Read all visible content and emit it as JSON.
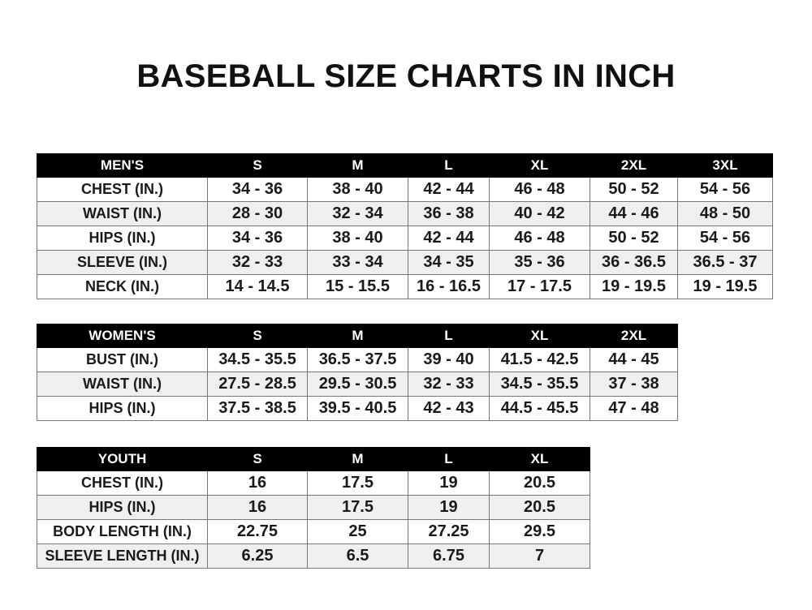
{
  "title": "BASEBALL SIZE CHARTS IN INCH",
  "tables": [
    {
      "id": "men",
      "header": [
        "MEN'S",
        "S",
        "M",
        "L",
        "XL",
        "2XL",
        "3XL"
      ],
      "rows": [
        [
          "CHEST (IN.)",
          "34 - 36",
          "38 - 40",
          "42 - 44",
          "46 - 48",
          "50 - 52",
          "54 - 56"
        ],
        [
          "WAIST (IN.)",
          "28 - 30",
          "32 - 34",
          "36 - 38",
          "40 - 42",
          "44 - 46",
          "48 - 50"
        ],
        [
          "HIPS (IN.)",
          "34 - 36",
          "38 - 40",
          "42 - 44",
          "46 - 48",
          "50 - 52",
          "54 - 56"
        ],
        [
          "SLEEVE (IN.)",
          "32 - 33",
          "33 - 34",
          "34 - 35",
          "35 - 36",
          "36 - 36.5",
          "36.5 - 37"
        ],
        [
          "NECK (IN.)",
          "14 - 14.5",
          "15 - 15.5",
          "16 - 16.5",
          "17 - 17.5",
          "19 - 19.5",
          "19 - 19.5"
        ]
      ]
    },
    {
      "id": "women",
      "header": [
        "WOMEN'S",
        "S",
        "M",
        "L",
        "XL",
        "2XL"
      ],
      "rows": [
        [
          "BUST (IN.)",
          "34.5 - 35.5",
          "36.5 - 37.5",
          "39 - 40",
          "41.5 - 42.5",
          "44 - 45"
        ],
        [
          "WAIST (IN.)",
          "27.5 - 28.5",
          "29.5 - 30.5",
          "32 - 33",
          "34.5 - 35.5",
          "37 - 38"
        ],
        [
          "HIPS (IN.)",
          "37.5 - 38.5",
          "39.5 - 40.5",
          "42 - 43",
          "44.5 - 45.5",
          "47 - 48"
        ]
      ]
    },
    {
      "id": "youth",
      "header": [
        "YOUTH",
        "S",
        "M",
        "L",
        "XL"
      ],
      "rows": [
        [
          "CHEST (IN.)",
          "16",
          "17.5",
          "19",
          "20.5"
        ],
        [
          "HIPS (IN.)",
          "16",
          "17.5",
          "19",
          "20.5"
        ],
        [
          "BODY LENGTH (IN.)",
          "22.75",
          "25",
          "27.25",
          "29.5"
        ],
        [
          "SLEEVE LENGTH (IN.)",
          "6.25",
          "6.5",
          "6.75",
          "7"
        ]
      ]
    }
  ]
}
